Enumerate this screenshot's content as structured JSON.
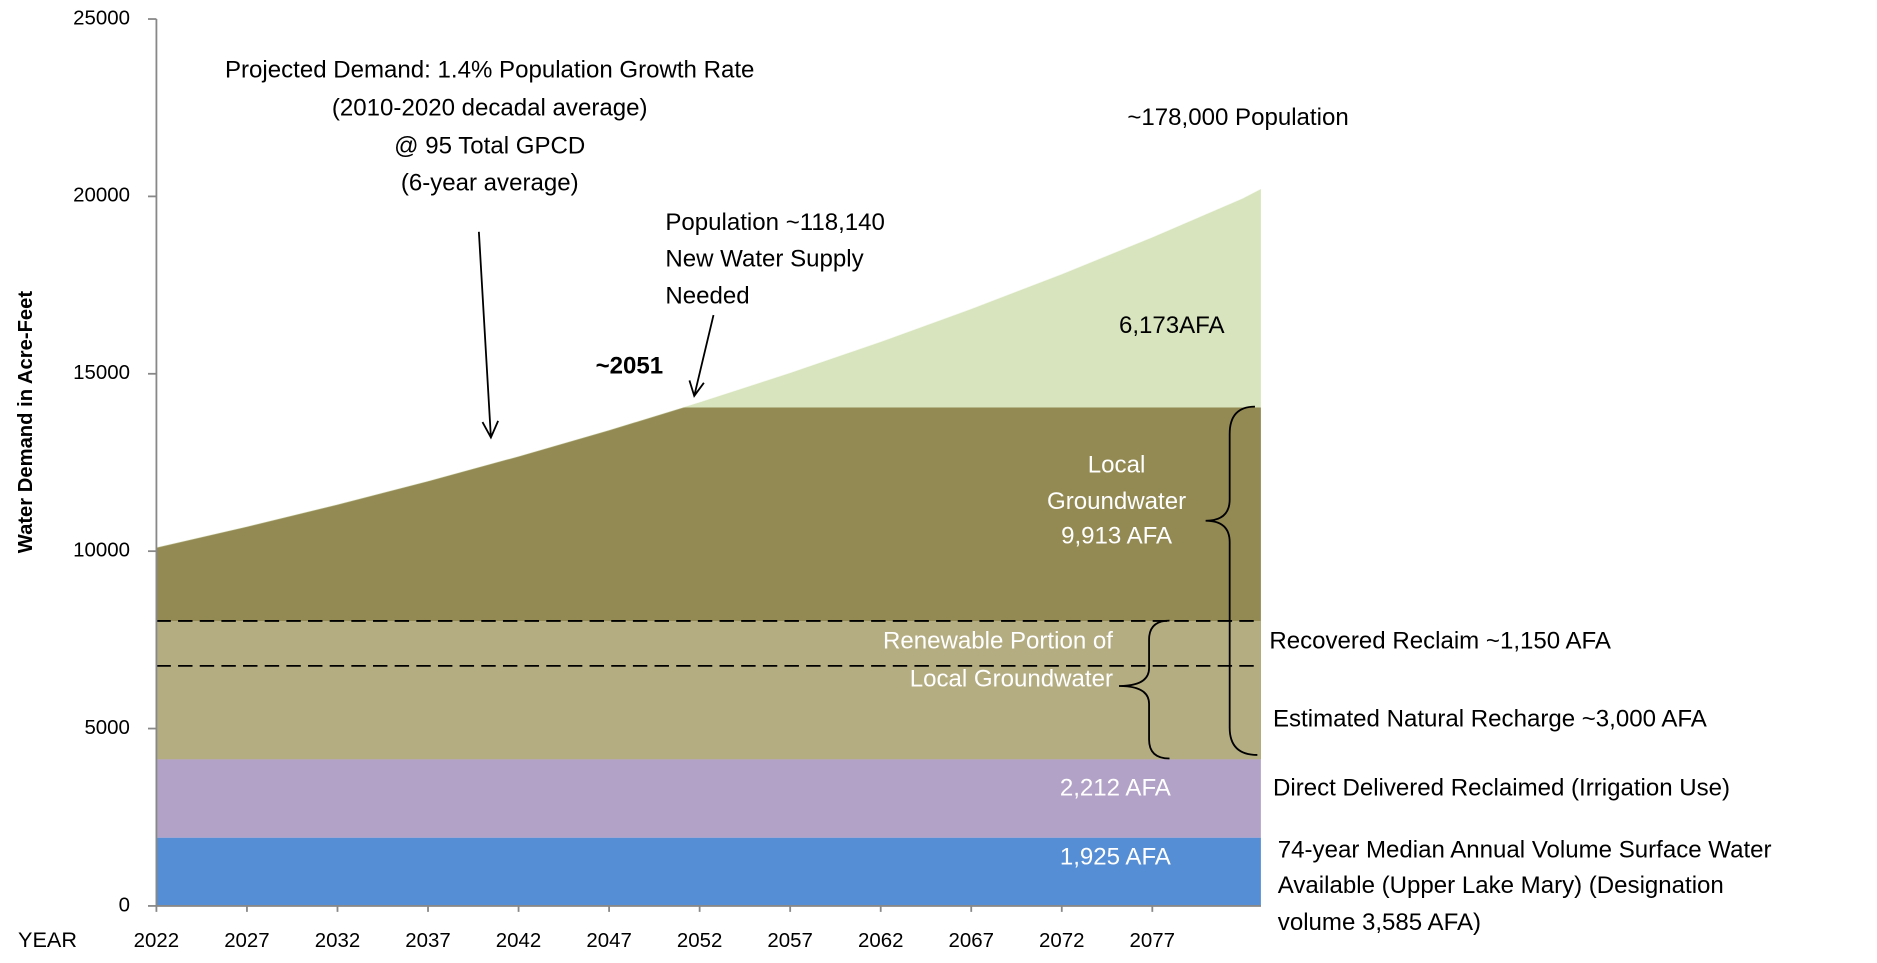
{
  "chart_data": {
    "type": "area",
    "ylabel": "Water Demand in Acre-Feet",
    "xlabel": "YEAR",
    "xlim": [
      2022,
      2083
    ],
    "xticks": [
      2022,
      2027,
      2032,
      2037,
      2042,
      2047,
      2052,
      2057,
      2062,
      2067,
      2072,
      2077
    ],
    "ylim": [
      0,
      25000
    ],
    "yticks": [
      0,
      5000,
      10000,
      15000,
      20000,
      25000
    ],
    "bands": [
      {
        "value": 1925,
        "color": "#558ed5",
        "label": [
          "1,925 AFA"
        ]
      },
      {
        "value": 2212,
        "color": "#b3a2c7",
        "label": [
          "2,212 AFA"
        ]
      },
      {
        "value": 9913,
        "color": "#938953",
        "label": [
          "Local",
          "Groundwater",
          "9,913 AFA"
        ]
      }
    ],
    "renewable": {
      "top": 8033,
      "color": "#b5ad82",
      "label": [
        "Renewable Portion of",
        "Local Groundwater"
      ]
    },
    "dashed_lines": [
      6767,
      8033
    ],
    "new_supply": {
      "value": 6173,
      "color": "#d7e4bd",
      "label": "6,173AFA"
    },
    "demand": {
      "x": [
        2022,
        2027,
        2032,
        2037,
        2042,
        2047,
        2052,
        2057,
        2062,
        2067,
        2072,
        2077,
        2082,
        2083
      ],
      "values": [
        10100,
        10689,
        11312,
        11972,
        12670,
        13408,
        14190,
        15017,
        15893,
        16820,
        17800,
        18838,
        19936,
        20200
      ]
    },
    "annotations": {
      "projected": [
        "Projected Demand: 1.4% Population Growth Rate",
        "(2010-2020 decadal average)",
        "@ 95 Total GPCD",
        "(6-year average)"
      ],
      "population_end": "~178,000 Population",
      "population_2051": [
        "Population ~118,140",
        "New Water Supply",
        "Needed"
      ],
      "year_2051": "~2051",
      "recovered": "Recovered Reclaim ~1,150 AFA",
      "recharge": "Estimated Natural Recharge ~3,000 AFA",
      "direct": "Direct Delivered Reclaimed (Irrigation Use)",
      "surface": [
        "74-year Median Annual Volume Surface Water",
        "Available (Upper Lake Mary) (Designation",
        "volume 3,585 AFA)"
      ]
    }
  }
}
